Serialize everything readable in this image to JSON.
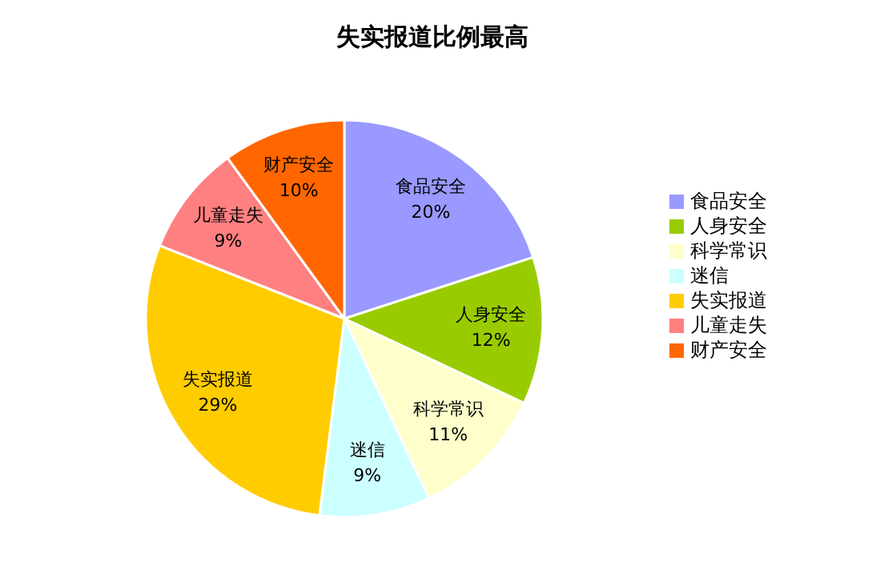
{
  "chart_data": {
    "type": "pie",
    "title": "失实报道比例最高",
    "categories": [
      "食品安全",
      "人身安全",
      "科学常识",
      "迷信",
      "失实报道",
      "儿童走失",
      "财产安全"
    ],
    "values": [
      20,
      12,
      11,
      9,
      29,
      9,
      10
    ],
    "value_labels": [
      "20%",
      "12%",
      "11%",
      "9%",
      "29%",
      "9%",
      "10%"
    ],
    "colors": [
      "#9999ff",
      "#99cc00",
      "#ffffcc",
      "#ccffff",
      "#ffcc00",
      "#ff8080",
      "#ff6600"
    ],
    "legend": "right"
  }
}
